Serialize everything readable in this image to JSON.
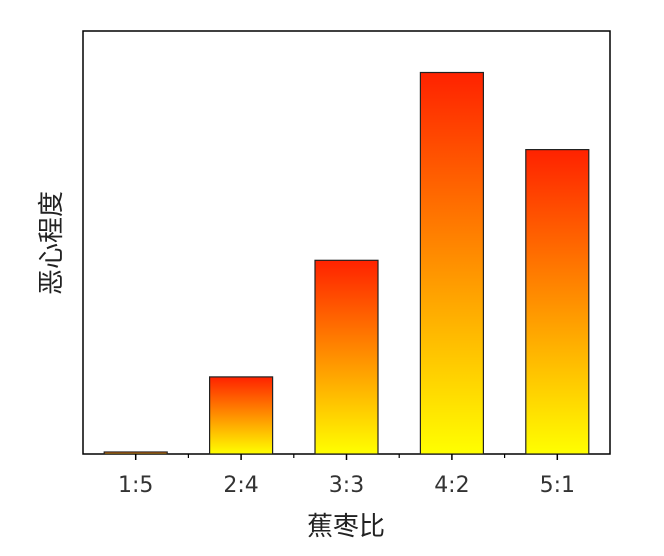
{
  "chart_data": {
    "type": "bar",
    "title": "",
    "xlabel": "蕉枣比",
    "ylabel": "恶心程度",
    "categories": [
      "1:5",
      "2:4",
      "3:3",
      "4:2",
      "5:1"
    ],
    "values": [
      0.5,
      19.5,
      49,
      96.5,
      77
    ],
    "ylim": [
      0,
      107
    ],
    "y_tick_labels_shown": false,
    "grid": false,
    "legend": "none",
    "bar_gradient": {
      "top": "#ff2200",
      "middle": "#ff9000",
      "bottom": "#ffff00"
    },
    "bar_outline": "#222222",
    "axis_color": "#000000"
  }
}
